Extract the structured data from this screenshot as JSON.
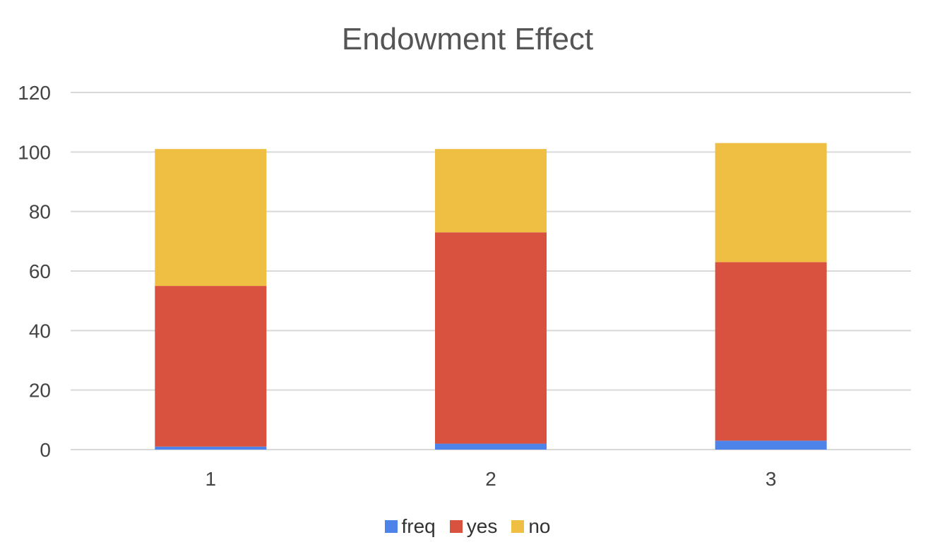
{
  "chart_data": {
    "type": "bar",
    "stacked": true,
    "title": "Endowment Effect",
    "xlabel": "",
    "ylabel": "",
    "categories": [
      "1",
      "2",
      "3"
    ],
    "ylim": [
      0,
      120
    ],
    "yticks": [
      0,
      20,
      40,
      60,
      80,
      100,
      120
    ],
    "grid": true,
    "legend_position": "bottom",
    "series": [
      {
        "name": "freq",
        "color": "#4e84ea",
        "values": [
          1,
          2,
          3
        ]
      },
      {
        "name": "yes",
        "color": "#d95240",
        "values": [
          54,
          71,
          60
        ]
      },
      {
        "name": "no",
        "color": "#efbf43",
        "values": [
          46,
          28,
          40
        ]
      }
    ]
  }
}
